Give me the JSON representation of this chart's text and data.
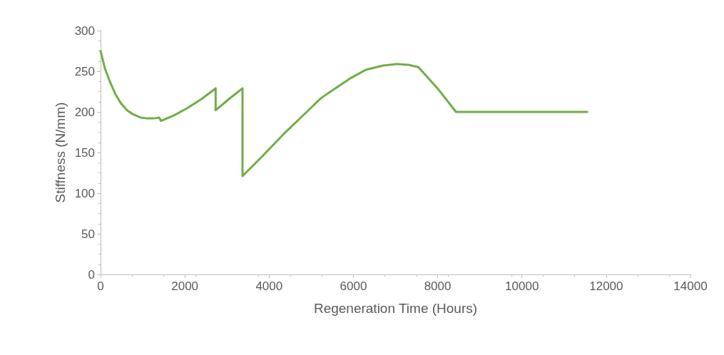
{
  "chart_data": {
    "type": "line",
    "xlabel": "Regeneration Time (Hours)",
    "ylabel": "Stiffness (N/mm)",
    "series": [
      {
        "color": "#70ad47",
        "x": [
          0,
          100,
          208,
          350,
          491,
          630,
          774,
          950,
          1112,
          1250,
          1393,
          1434,
          1750,
          2070,
          2400,
          2731,
          2731,
          3050,
          3369,
          3369,
          3850,
          4329,
          4893,
          5231,
          5570,
          5950,
          6303,
          6700,
          7037,
          7300,
          7545,
          7996,
          8436,
          11551
        ],
        "values": [
          275,
          254,
          239,
          222,
          210,
          202,
          197,
          193,
          192,
          192,
          193,
          189,
          196,
          205,
          216,
          229,
          202,
          216,
          229,
          121,
          146,
          172,
          200,
          217,
          229,
          242,
          252,
          257,
          259,
          258,
          255,
          229,
          200,
          200
        ]
      }
    ],
    "xlim": [
      0,
      14000
    ],
    "xticks": [
      0,
      2000,
      4000,
      6000,
      8000,
      10000,
      12000,
      14000
    ],
    "ylim": [
      0,
      300
    ],
    "yticks": [
      0,
      50,
      100,
      150,
      200,
      250,
      300
    ],
    "grid": false,
    "marker": "none",
    "line_style": "solid"
  }
}
